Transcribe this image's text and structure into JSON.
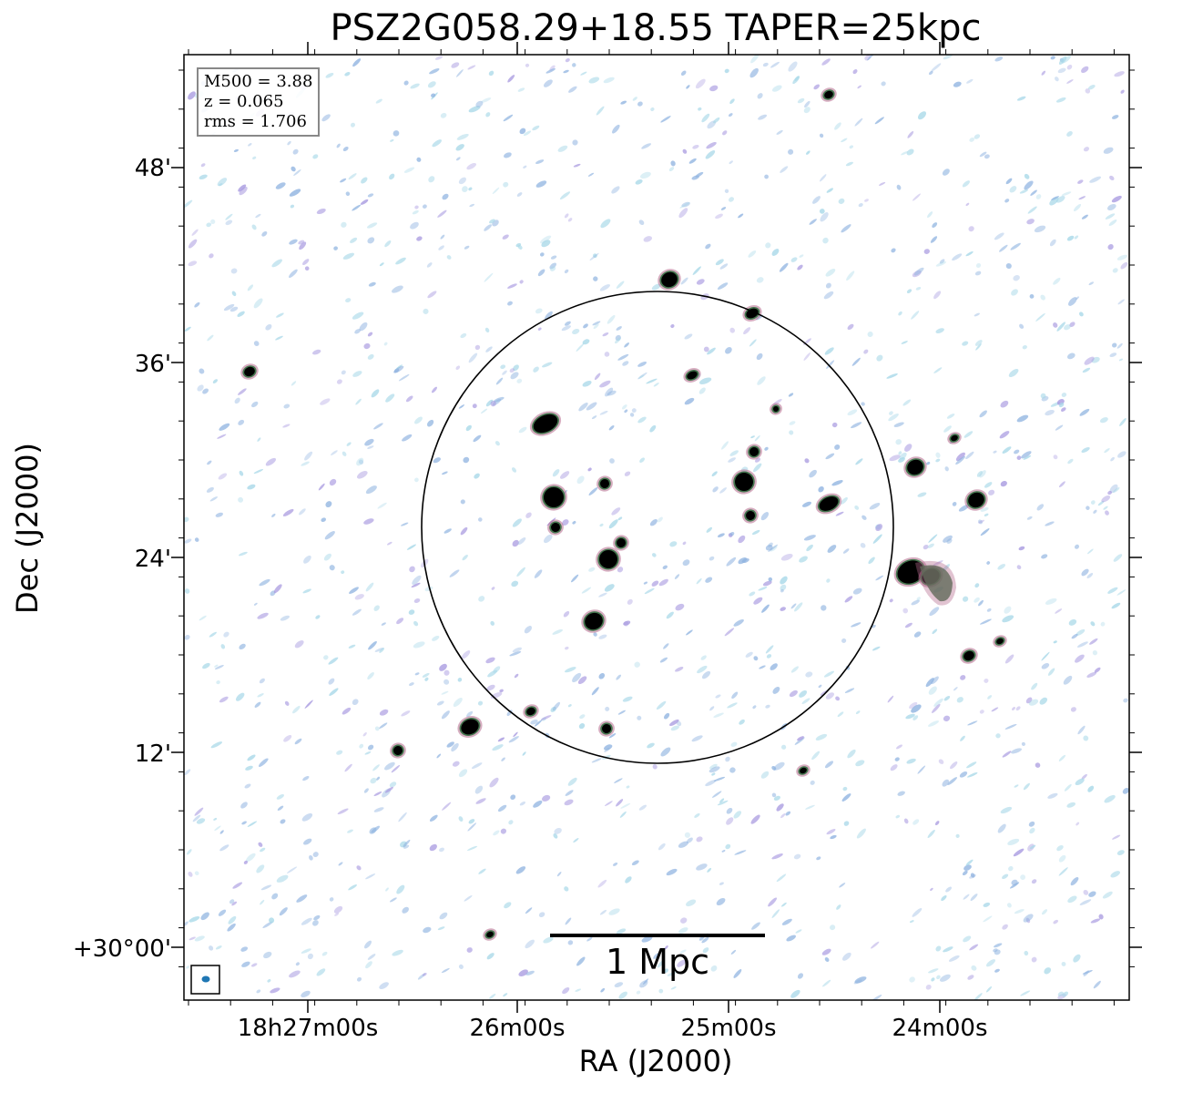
{
  "title": "PSZ2G058.29+18.55 TAPER=25kpc",
  "info": {
    "m500": "M500 = 3.88",
    "z": "z = 0.065",
    "rms": "rms = 1.706"
  },
  "axes": {
    "xlabel": "RA (J2000)",
    "ylabel": "Dec (J2000)",
    "xticks": [
      "18h27m00s",
      "26m00s",
      "25m00s",
      "24m00s"
    ],
    "yticks": [
      "48'",
      "36'",
      "24'",
      "12'",
      "+30°00'"
    ]
  },
  "scalebar": {
    "label": "1 Mpc"
  },
  "colors": {
    "source": "#000000",
    "halo_green": "#2a6b3a",
    "halo_pink": "#b56a8c",
    "noise_blue": "#8fb3e0",
    "noise_purple": "#a89ae0",
    "noise_cyan": "#a8d8e8",
    "beam": "#1f77b4"
  }
}
